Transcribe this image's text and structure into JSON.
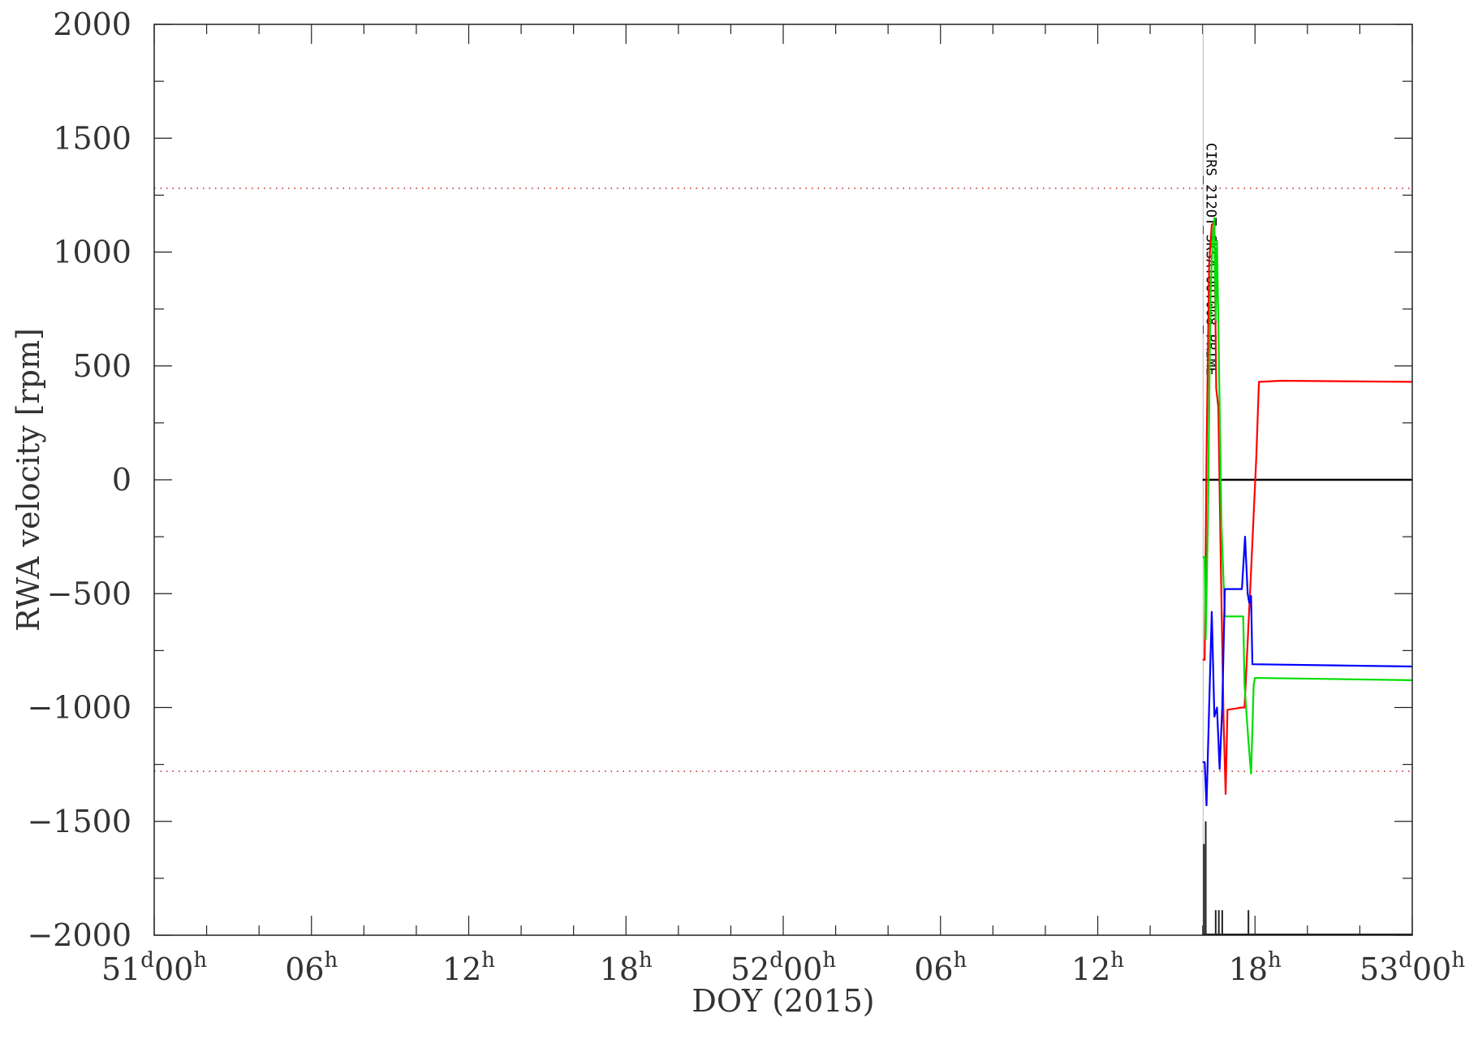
{
  "chart_data": {
    "type": "line",
    "xlabel": "DOY (2015)",
    "ylabel": "RWA velocity [rpm]",
    "xlim_hours": [
      0,
      48
    ],
    "ylim": [
      -2000,
      2000
    ],
    "y_ticks": [
      2000,
      1500,
      1000,
      500,
      0,
      -500,
      -1000,
      -1500,
      -2000
    ],
    "x_ticks": [
      {
        "hour": 0,
        "main": "51",
        "sup1": "d",
        "mid": "00",
        "sup2": "h"
      },
      {
        "hour": 6,
        "main": "",
        "sup1": "",
        "mid": "06",
        "sup2": "h"
      },
      {
        "hour": 12,
        "main": "",
        "sup1": "",
        "mid": "12",
        "sup2": "h"
      },
      {
        "hour": 18,
        "main": "",
        "sup1": "",
        "mid": "18",
        "sup2": "h"
      },
      {
        "hour": 24,
        "main": "52",
        "sup1": "d",
        "mid": "00",
        "sup2": "h"
      },
      {
        "hour": 30,
        "main": "",
        "sup1": "",
        "mid": "06",
        "sup2": "h"
      },
      {
        "hour": 36,
        "main": "",
        "sup1": "",
        "mid": "12",
        "sup2": "h"
      },
      {
        "hour": 42,
        "main": "",
        "sup1": "",
        "mid": "18",
        "sup2": "h"
      },
      {
        "hour": 48,
        "main": "53",
        "sup1": "d",
        "mid": "00",
        "sup2": "h"
      }
    ],
    "limit_lines": [
      1280,
      -1280
    ],
    "limit_color": "#c0303a",
    "zero_line": {
      "from_hour": 40.0,
      "to_hour": 48.0,
      "value": 0
    },
    "event_marker": {
      "hour": 40.02,
      "label": "CIRS_212OT_SKSATOUT008_PRIME"
    },
    "series": [
      {
        "color": "#ff0000",
        "points": [
          [
            40.0,
            -790
          ],
          [
            40.08,
            -790
          ],
          [
            40.15,
            100
          ],
          [
            40.25,
            950
          ],
          [
            40.35,
            1120
          ],
          [
            40.45,
            1130
          ],
          [
            40.52,
            400
          ],
          [
            40.6,
            320
          ],
          [
            40.7,
            -400
          ],
          [
            40.8,
            -1050
          ],
          [
            40.88,
            -1380
          ],
          [
            40.95,
            -1010
          ],
          [
            41.5,
            -1000
          ],
          [
            41.6,
            -1000
          ],
          [
            41.85,
            -400
          ],
          [
            42.05,
            100
          ],
          [
            42.15,
            430
          ],
          [
            43.0,
            435
          ],
          [
            48.0,
            430
          ]
        ]
      },
      {
        "color": "#00dd00",
        "points": [
          [
            40.0,
            -340
          ],
          [
            40.08,
            -340
          ],
          [
            40.12,
            -700
          ],
          [
            40.2,
            -200
          ],
          [
            40.3,
            800
          ],
          [
            40.38,
            1050
          ],
          [
            40.45,
            1150
          ],
          [
            40.5,
            700
          ],
          [
            40.55,
            1050
          ],
          [
            40.6,
            700
          ],
          [
            40.72,
            -200
          ],
          [
            40.85,
            -600
          ],
          [
            40.95,
            -600
          ],
          [
            41.55,
            -600
          ],
          [
            41.6,
            -900
          ],
          [
            41.75,
            -1150
          ],
          [
            41.85,
            -1290
          ],
          [
            41.95,
            -900
          ],
          [
            42.0,
            -870
          ],
          [
            45.0,
            -875
          ],
          [
            48.0,
            -880
          ]
        ]
      },
      {
        "color": "#0000ff",
        "points": [
          [
            40.0,
            -1240
          ],
          [
            40.08,
            -1240
          ],
          [
            40.15,
            -1430
          ],
          [
            40.25,
            -1000
          ],
          [
            40.35,
            -580
          ],
          [
            40.45,
            -1040
          ],
          [
            40.55,
            -1000
          ],
          [
            40.65,
            -1270
          ],
          [
            40.75,
            -1000
          ],
          [
            40.85,
            -480
          ],
          [
            41.0,
            -480
          ],
          [
            41.5,
            -480
          ],
          [
            41.62,
            -250
          ],
          [
            41.72,
            -500
          ],
          [
            41.78,
            -540
          ],
          [
            41.85,
            -510
          ],
          [
            41.9,
            -810
          ],
          [
            45.0,
            -815
          ],
          [
            48.0,
            -820
          ]
        ]
      }
    ],
    "spikes": [
      {
        "hour": 40.05,
        "value": -1600
      },
      {
        "hour": 40.12,
        "value": -1500
      },
      {
        "hour": 40.5,
        "value": -1890
      },
      {
        "hour": 40.62,
        "value": -1890
      },
      {
        "hour": 40.75,
        "value": -1890
      },
      {
        "hour": 41.75,
        "value": -1890
      }
    ],
    "spike_base_from_hour": 40.0,
    "spike_base_to_hour": 48.0
  }
}
